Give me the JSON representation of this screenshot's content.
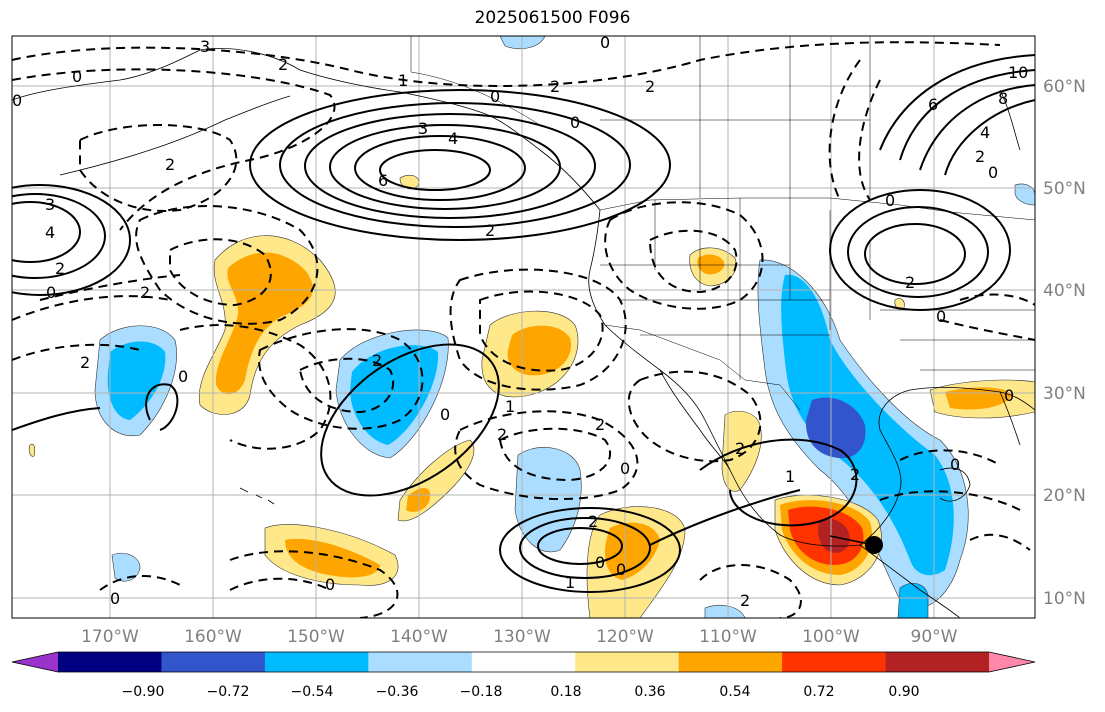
{
  "title": "2025061500 F096",
  "lon_labels": [
    "170°W",
    "160°W",
    "150°W",
    "140°W",
    "130°W",
    "120°W",
    "110°W",
    "100°W",
    "90°W"
  ],
  "lat_labels": [
    "60°N",
    "50°N",
    "40°N",
    "30°N",
    "20°N",
    "10°N"
  ],
  "colorbar": {
    "tick_labels": [
      "−0.90",
      "−0.72",
      "−0.54",
      "−0.36",
      "−0.18",
      "0.18",
      "0.36",
      "0.54",
      "0.72",
      "0.90"
    ],
    "colors": [
      "#9933cc",
      "#000080",
      "#3355cc",
      "#00bbff",
      "#aaddff",
      "#ffffff",
      "#ffe88a",
      "#ffa500",
      "#ff3300",
      "#b22222",
      "#ff88aa"
    ]
  },
  "contour_labels": [
    "3",
    "0",
    "2",
    "1",
    "0",
    "2",
    "0",
    "2",
    "3",
    "4",
    "6",
    "6",
    "8",
    "10",
    "4",
    "0",
    "2",
    "3",
    "4",
    "2",
    "0",
    "2",
    "2",
    "0",
    "0",
    "2",
    "0",
    "0",
    "2",
    "2",
    "2",
    "2",
    "1",
    "2",
    "0",
    "2",
    "0",
    "0",
    "2",
    "0",
    "1",
    "2",
    "0",
    "0",
    "2",
    "0",
    "1",
    "0",
    "0"
  ],
  "marker": "storm-center-dot"
}
